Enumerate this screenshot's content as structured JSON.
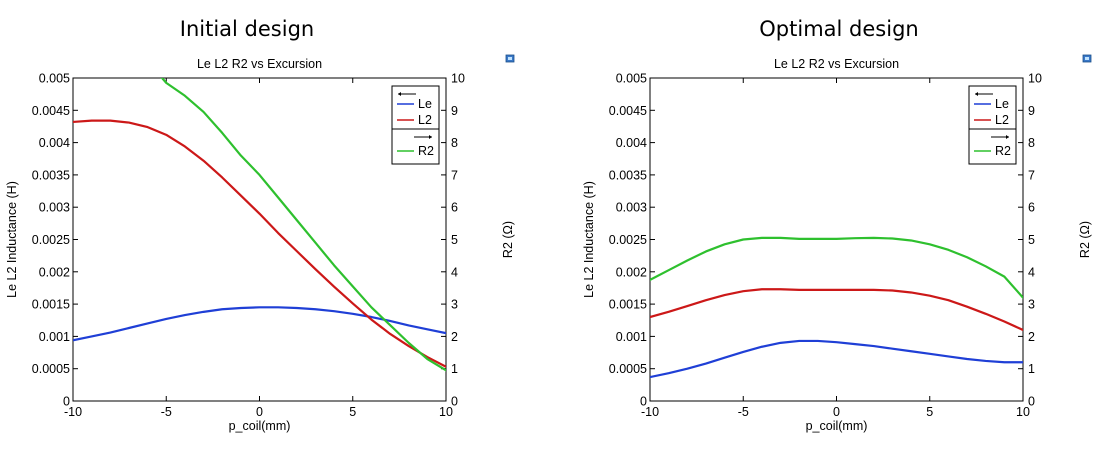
{
  "chart_data": [
    {
      "type": "line",
      "heading": "Initial design",
      "title": "Le L2 R2 vs Excursion",
      "xlabel": "p_coil(mm)",
      "ylabel": "Le L2 Inductance (H)",
      "y2label": "R2 (Ω)",
      "xlim": [
        -10,
        10
      ],
      "ylim": [
        0,
        0.005
      ],
      "y2lim": [
        0,
        10
      ],
      "x_ticks": [
        "-10",
        "-5",
        "0",
        "5",
        "10"
      ],
      "y_ticks": [
        "0",
        "0.0005",
        "0.001",
        "0.0015",
        "0.002",
        "0.0025",
        "0.003",
        "0.0035",
        "0.004",
        "0.0045",
        "0.005"
      ],
      "y2_ticks": [
        "0",
        "1",
        "2",
        "3",
        "4",
        "5",
        "6",
        "7",
        "8",
        "9",
        "10"
      ],
      "grid": false,
      "legend_position": "top-right",
      "x": [
        -10,
        -9,
        -8,
        -7,
        -6,
        -5,
        -4,
        -3,
        -2,
        -1,
        0,
        1,
        2,
        3,
        4,
        5,
        6,
        7,
        8,
        9,
        10
      ],
      "series": [
        {
          "name": "Le",
          "axis": "left",
          "color": "#1f3fd6",
          "values": [
            0.00094,
            0.001,
            0.00106,
            0.00113,
            0.0012,
            0.00127,
            0.00133,
            0.00138,
            0.00142,
            0.00144,
            0.00145,
            0.00145,
            0.00144,
            0.00142,
            0.00139,
            0.00135,
            0.0013,
            0.00124,
            0.00117,
            0.00111,
            0.00105
          ]
        },
        {
          "name": "L2",
          "axis": "left",
          "color": "#cc1818",
          "values": [
            0.00432,
            0.00434,
            0.00434,
            0.00431,
            0.00424,
            0.00412,
            0.00394,
            0.00372,
            0.00346,
            0.00318,
            0.0029,
            0.0026,
            0.00232,
            0.00204,
            0.00177,
            0.00151,
            0.00126,
            0.00104,
            0.00085,
            0.00068,
            0.00053
          ]
        },
        {
          "name": "R2",
          "axis": "right",
          "color": "#2ec02e",
          "values": [
            null,
            null,
            null,
            null,
            null,
            9.85,
            9.45,
            8.95,
            8.3,
            7.6,
            7.0,
            6.3,
            5.6,
            4.9,
            4.2,
            3.55,
            2.9,
            2.35,
            1.8,
            1.3,
            0.95
          ]
        }
      ]
    },
    {
      "type": "line",
      "heading": "Optimal design",
      "title": "Le L2 R2 vs Excursion",
      "xlabel": "p_coil(mm)",
      "ylabel": "Le L2 Inductance (H)",
      "y2label": "R2 (Ω)",
      "xlim": [
        -10,
        10
      ],
      "ylim": [
        0,
        0.005
      ],
      "y2lim": [
        0,
        10
      ],
      "x_ticks": [
        "-10",
        "-5",
        "0",
        "5",
        "10"
      ],
      "y_ticks": [
        "0",
        "0.0005",
        "0.001",
        "0.0015",
        "0.002",
        "0.0025",
        "0.003",
        "0.0035",
        "0.004",
        "0.0045",
        "0.005"
      ],
      "y2_ticks": [
        "0",
        "1",
        "2",
        "3",
        "4",
        "5",
        "6",
        "7",
        "8",
        "9",
        "10"
      ],
      "grid": false,
      "legend_position": "top-right",
      "x": [
        -10,
        -9,
        -8,
        -7,
        -6,
        -5,
        -4,
        -3,
        -2,
        -1,
        0,
        1,
        2,
        3,
        4,
        5,
        6,
        7,
        8,
        9,
        10
      ],
      "series": [
        {
          "name": "Le",
          "axis": "left",
          "color": "#1f3fd6",
          "values": [
            0.00037,
            0.00043,
            0.0005,
            0.00058,
            0.00067,
            0.00076,
            0.00084,
            0.0009,
            0.00093,
            0.00093,
            0.00091,
            0.00088,
            0.00085,
            0.00081,
            0.00077,
            0.00073,
            0.00069,
            0.00065,
            0.00062,
            0.0006,
            0.0006
          ]
        },
        {
          "name": "L2",
          "axis": "left",
          "color": "#cc1818",
          "values": [
            0.0013,
            0.00138,
            0.00147,
            0.00156,
            0.00164,
            0.0017,
            0.00173,
            0.00173,
            0.00172,
            0.00172,
            0.00172,
            0.00172,
            0.00172,
            0.00171,
            0.00168,
            0.00163,
            0.00156,
            0.00146,
            0.00135,
            0.00123,
            0.0011
          ]
        },
        {
          "name": "R2",
          "axis": "right",
          "color": "#2ec02e",
          "values": [
            3.75,
            4.05,
            4.35,
            4.63,
            4.85,
            5.0,
            5.05,
            5.05,
            5.02,
            5.02,
            5.02,
            5.04,
            5.05,
            5.03,
            4.97,
            4.85,
            4.68,
            4.45,
            4.17,
            3.85,
            3.2
          ]
        }
      ]
    }
  ]
}
